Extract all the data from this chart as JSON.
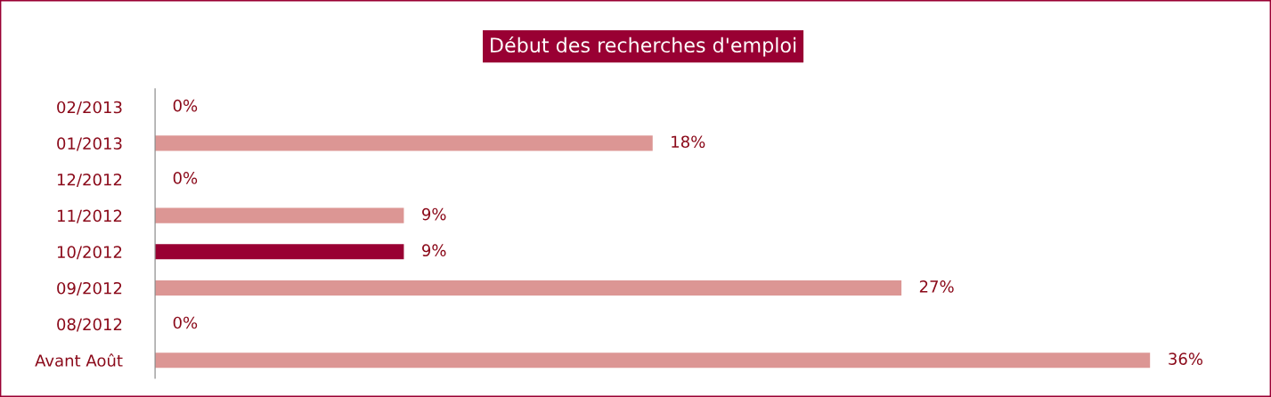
{
  "chart_data": {
    "type": "bar",
    "orientation": "horizontal",
    "title": "Début des recherches d'emploi",
    "categories": [
      "02/2013",
      "01/2013",
      "12/2012",
      "11/2012",
      "10/2012",
      "09/2012",
      "08/2012",
      "Avant Août"
    ],
    "values": [
      0,
      18,
      0,
      9,
      9,
      27,
      0,
      36
    ],
    "colors": [
      "#dc9694",
      "#dc9694",
      "#dc9694",
      "#dc9694",
      "#990033",
      "#dc9694",
      "#dc9694",
      "#dc9694"
    ],
    "value_labels": [
      "0%",
      "18%",
      "0%",
      "9%",
      "9%",
      "27%",
      "0%",
      "36%"
    ],
    "tick_labels": "y",
    "grid": false
  }
}
